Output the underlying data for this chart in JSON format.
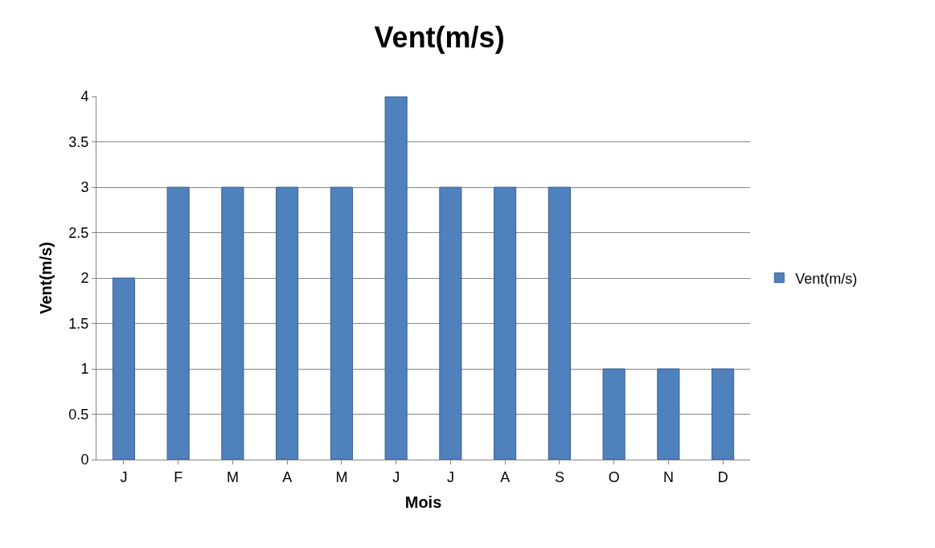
{
  "chart_data": {
    "type": "bar",
    "title": "Vent(m/s)",
    "xlabel": "Mois",
    "ylabel": "Vent(m/s)",
    "categories": [
      "J",
      "F",
      "M",
      "A",
      "M",
      "J",
      "J",
      "A",
      "S",
      "O",
      "N",
      "D"
    ],
    "series": [
      {
        "name": "Vent(m/s)",
        "color": "#4f81bd",
        "values": [
          2,
          3,
          3,
          3,
          3,
          4,
          3,
          3,
          3,
          1,
          1,
          1
        ]
      }
    ],
    "ylim": [
      0,
      4
    ],
    "yticks": [
      0,
      0.5,
      1,
      1.5,
      2,
      2.5,
      3,
      3.5,
      4
    ],
    "grid": "y",
    "legend": "right"
  }
}
